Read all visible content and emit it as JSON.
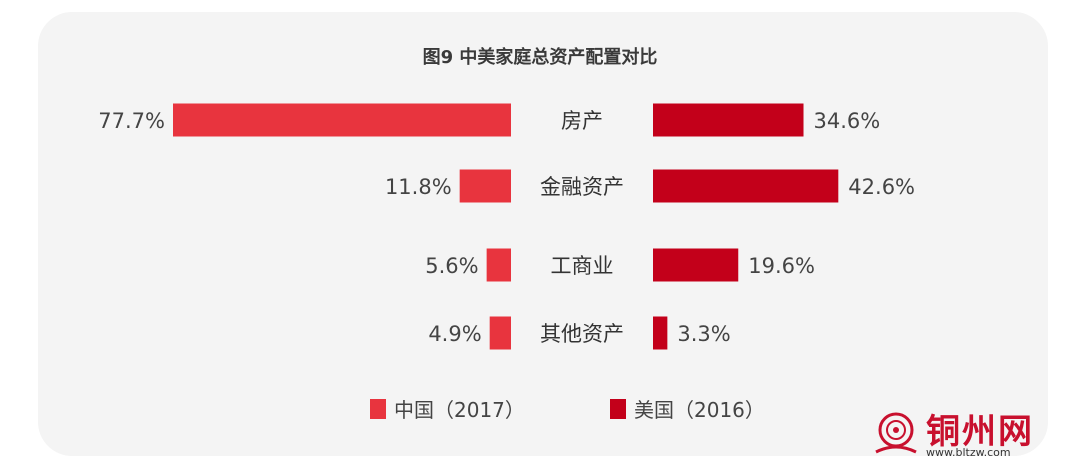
{
  "chart_data": {
    "type": "bar",
    "title": "图9 中美家庭总资产配置对比",
    "categories": [
      "房产",
      "金融资产",
      "工商业",
      "其他资产"
    ],
    "series": [
      {
        "name": "中国（2017）",
        "values": [
          77.7,
          11.8,
          5.6,
          4.9
        ],
        "labels": [
          "77.7%",
          "11.8%",
          "5.6%",
          "4.9%"
        ],
        "color": "#e8343e"
      },
      {
        "name": "美国（2016）",
        "values": [
          34.6,
          42.6,
          19.6,
          3.3
        ],
        "labels": [
          "34.6%",
          "42.6%",
          "19.6%",
          "3.3%"
        ],
        "color": "#c3001a"
      }
    ],
    "xlim": [
      0,
      100
    ],
    "grid": false,
    "legend": "bottom-center"
  },
  "watermark": {
    "text": "铜州网",
    "url": "www.bltzw.com"
  }
}
